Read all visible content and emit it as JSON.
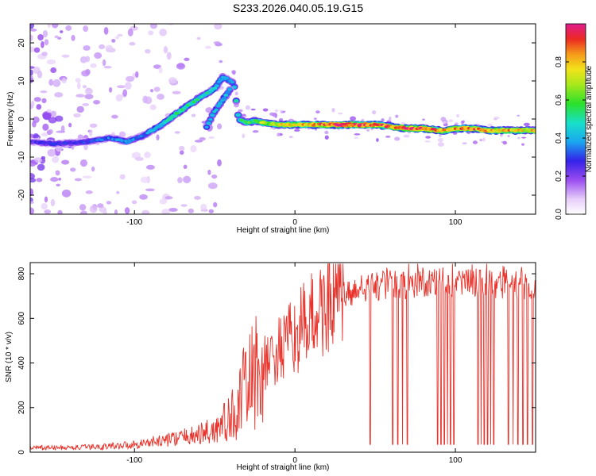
{
  "title": "S233.2026.040.05.19.G15",
  "colors": {
    "snr_line": "#e8322a",
    "axis": "#000000",
    "background": "#ffffff"
  },
  "chart_data": [
    {
      "type": "heatmap",
      "name": "spectrogram",
      "xlabel": "Height of straight line (km)",
      "ylabel": "Frequency (Hz)",
      "xlim": [
        -165,
        150
      ],
      "ylim": [
        -25,
        25
      ],
      "xticks": [
        -100,
        0,
        100
      ],
      "yticks": [
        -20,
        -10,
        0,
        10,
        20
      ],
      "colorbar": {
        "label": "Normalized spectral amplitude",
        "range": [
          0,
          1
        ],
        "ticks": [
          0.0,
          0.2,
          0.4,
          0.6,
          0.8
        ]
      },
      "ridge": {
        "x": [
          -165,
          -150,
          -130,
          -115,
          -105,
          -95,
          -85,
          -75,
          -65,
          -58,
          -50,
          -45,
          -40,
          -38,
          -35,
          -30,
          -25,
          -20,
          -10,
          0,
          10,
          20,
          30,
          40,
          50,
          60,
          70,
          80,
          90,
          95,
          100,
          110,
          120,
          130,
          140,
          150
        ],
        "y": [
          -6,
          -6.5,
          -6,
          -5,
          -6,
          -4.5,
          -2,
          1,
          4,
          6,
          8,
          11,
          10,
          9,
          0,
          -1,
          -0.5,
          -1,
          -1.5,
          -1.5,
          -1.5,
          -1.5,
          -1.5,
          -1.5,
          -1.5,
          -2,
          -2.5,
          -2.5,
          -3,
          -3,
          -2.5,
          -2.5,
          -3,
          -3,
          -3,
          -3
        ],
        "amplitude": [
          0.25,
          0.3,
          0.3,
          0.35,
          0.4,
          0.35,
          0.45,
          0.55,
          0.55,
          0.5,
          0.5,
          0.45,
          0.4,
          0.45,
          0.5,
          0.6,
          0.6,
          0.7,
          0.75,
          0.85,
          0.85,
          0.95,
          1.0,
          1.0,
          0.95,
          0.9,
          0.95,
          0.95,
          0.85,
          0.9,
          0.85,
          0.9,
          0.9,
          0.85,
          0.8,
          0.8
        ]
      },
      "secondary_ridge": {
        "x": [
          -55,
          -50,
          -45,
          -40
        ],
        "y": [
          -2,
          2,
          5,
          8
        ],
        "amplitude": [
          0.4,
          0.45,
          0.45,
          0.4
        ]
      }
    },
    {
      "type": "line",
      "name": "snr",
      "xlabel": "Height of straight line (km)",
      "ylabel": "SNR (10 * v/v)",
      "xlim": [
        -165,
        150
      ],
      "ylim": [
        0,
        850
      ],
      "xticks": [
        -100,
        0,
        100
      ],
      "yticks": [
        0,
        200,
        400,
        600,
        800
      ],
      "envelope": {
        "x": [
          -165,
          -140,
          -120,
          -100,
          -80,
          -60,
          -50,
          -40,
          -35,
          -30,
          -25,
          -20,
          -10,
          0,
          10,
          20,
          30,
          40,
          60,
          80,
          100,
          120,
          140,
          150
        ],
        "y": [
          20,
          20,
          25,
          35,
          55,
          80,
          100,
          150,
          220,
          300,
          350,
          380,
          450,
          520,
          600,
          660,
          700,
          730,
          750,
          760,
          760,
          755,
          750,
          740
        ]
      },
      "dropouts_x": [
        47,
        61,
        64,
        67,
        70,
        89,
        91,
        93,
        95,
        97,
        99,
        114,
        116,
        118,
        120,
        122,
        124,
        133,
        136,
        139,
        142,
        145,
        148
      ]
    }
  ]
}
